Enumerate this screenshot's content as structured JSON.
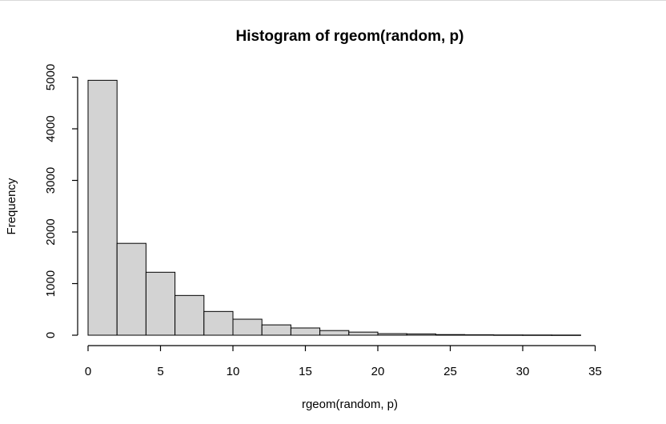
{
  "chart_data": {
    "type": "bar",
    "title": "Histogram of rgeom(random, p)",
    "xlabel": "rgeom(random, p)",
    "ylabel": "Frequency",
    "xlim": [
      0,
      34
    ],
    "ylim": [
      0,
      5000
    ],
    "x_ticks": [
      "0",
      "5",
      "10",
      "15",
      "20",
      "25",
      "30",
      "35"
    ],
    "y_ticks": [
      "0",
      "1000",
      "2000",
      "3000",
      "4000",
      "5000"
    ],
    "bin_edges": [
      0,
      2,
      4,
      6,
      8,
      10,
      12,
      14,
      16,
      18,
      20,
      22,
      24,
      26,
      28,
      30,
      32,
      34
    ],
    "values": [
      4940,
      1780,
      1220,
      770,
      460,
      310,
      200,
      140,
      90,
      60,
      30,
      25,
      12,
      8,
      5,
      4,
      3
    ],
    "grid": false,
    "bar_color": "#d3d3d3",
    "edge_color": "#000000"
  }
}
